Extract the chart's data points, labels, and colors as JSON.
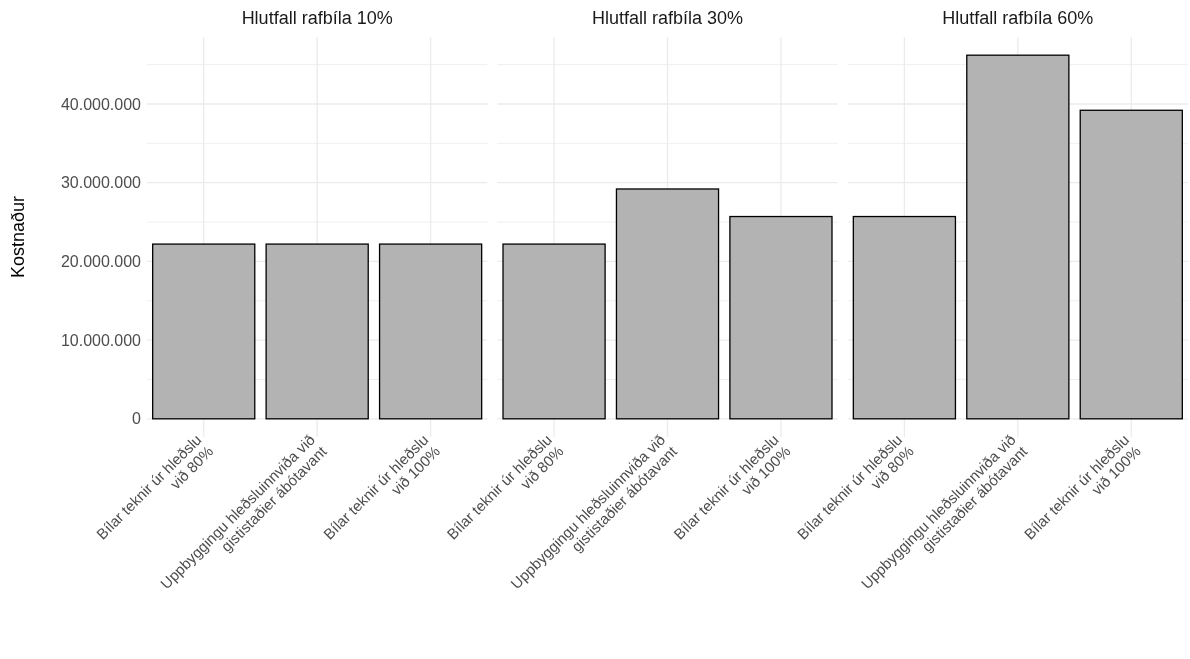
{
  "chart_data": [
    {
      "type": "bar",
      "title": "Hlutfall rafbíla 10%",
      "ylabel": "Kostnaður",
      "categories": [
        "Bílar teknir úr hleðslu\nvið 80%",
        "Uppbyggingu hleðsluinnviða við\ngististaðier ábótavant",
        "Bílar teknir úr hleðslu\nvið 100%"
      ],
      "values": [
        22200000,
        22200000,
        22200000
      ],
      "color": "#b3b3b3",
      "ylim": [
        -2310000,
        48510000
      ],
      "yticks": [
        {
          "value": 0,
          "label": "0"
        },
        {
          "value": 5000000,
          "label": null
        },
        {
          "value": 10000000,
          "label": "10.000.000"
        },
        {
          "value": 15000000,
          "label": null
        },
        {
          "value": 20000000,
          "label": "20.000.000"
        },
        {
          "value": 25000000,
          "label": null
        },
        {
          "value": 30000000,
          "label": "30.000.000"
        },
        {
          "value": 35000000,
          "label": null
        },
        {
          "value": 40000000,
          "label": "40.000.000"
        },
        {
          "value": 45000000,
          "label": null
        }
      ],
      "grid": true
    },
    {
      "type": "bar",
      "title": "Hlutfall rafbíla 30%",
      "categories": [
        "Bílar teknir úr hleðslu\nvið 80%",
        "Uppbyggingu hleðsluinnviða við\ngististaðier ábótavant",
        "Bílar teknir úr hleðslu\nvið 100%"
      ],
      "values": [
        22200000,
        29200000,
        25700000
      ],
      "color": "#b3b3b3",
      "ylim": [
        -2310000,
        48510000
      ],
      "yticks": [
        0,
        5000000,
        10000000,
        15000000,
        20000000,
        25000000,
        30000000,
        35000000,
        40000000,
        45000000
      ],
      "grid": true,
      "tick_labels": "x"
    },
    {
      "type": "bar",
      "title": "Hlutfall rafbíla 60%",
      "categories": [
        "Bílar teknir úr hleðslu\nvið 80%",
        "Uppbyggingu hleðsluinnviða við\ngististaðier ábótavant",
        "Bílar teknir úr hleðslu\nvið 100%"
      ],
      "values": [
        25700000,
        46200000,
        39200000
      ],
      "color": "#b3b3b3",
      "ylim": [
        -2310000,
        48510000
      ],
      "yticks": [
        0,
        5000000,
        10000000,
        15000000,
        20000000,
        25000000,
        30000000,
        35000000,
        40000000,
        45000000
      ],
      "grid": true,
      "tick_labels": "x"
    }
  ]
}
